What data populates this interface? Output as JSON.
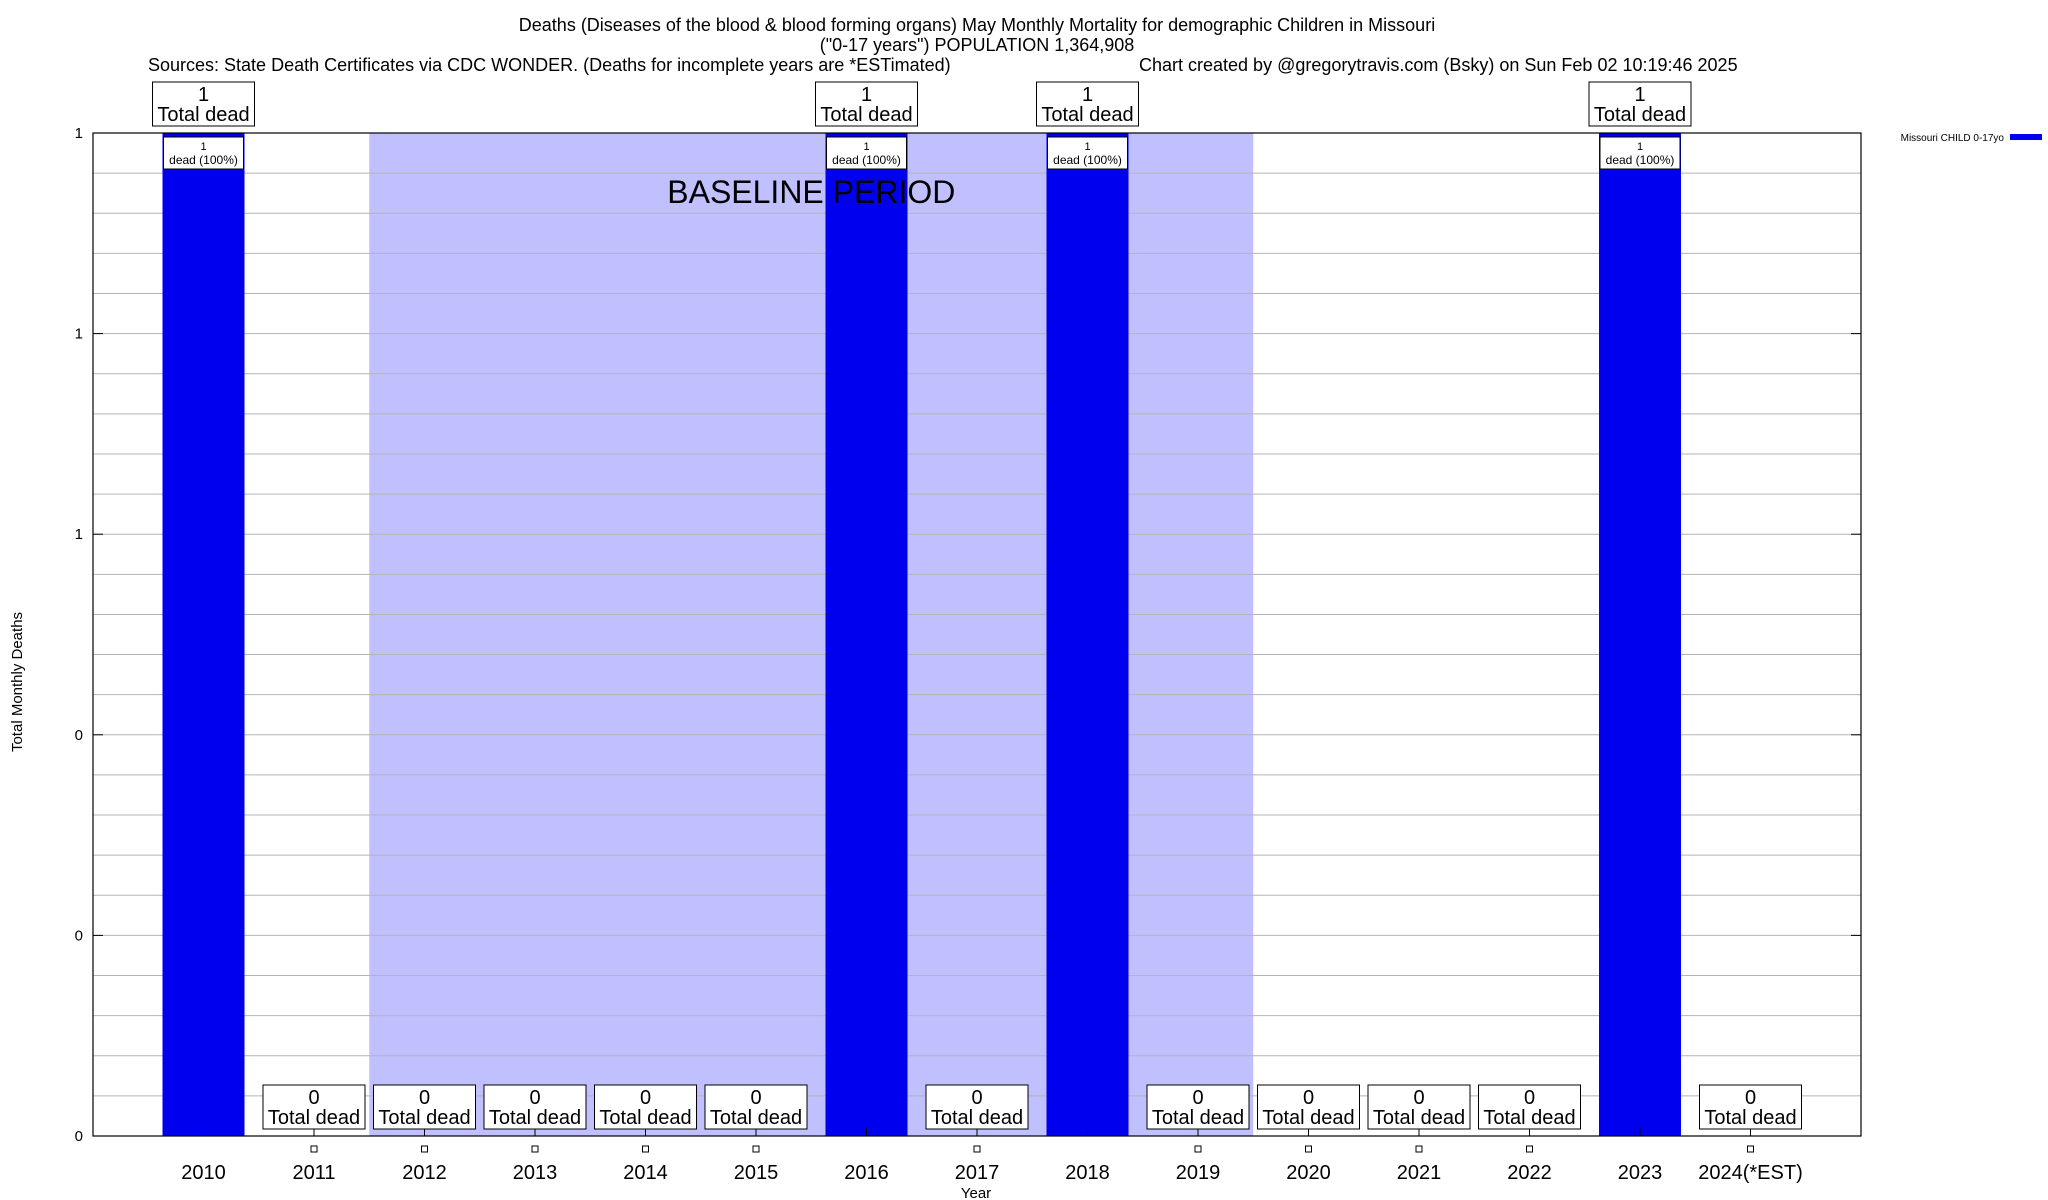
{
  "chart_data": {
    "type": "bar",
    "title_lines": [
      "Deaths (Diseases of the blood & blood forming organs) May Monthly Mortality for demographic Children in Missouri",
      "(\"0-17 years\") POPULATION 1,364,908"
    ],
    "sources_text": "Sources: State Death Certificates via CDC WONDER. (Deaths for incomplete years are *ESTimated)",
    "credit_text": "Chart created by @gregorytravis.com (Bsky) on Sun Feb 02 10:19:46 2025",
    "xlabel": "Year",
    "ylabel": "Total Monthly Deaths",
    "categories": [
      "2010",
      "2011",
      "2012",
      "2013",
      "2014",
      "2015",
      "2016",
      "2017",
      "2018",
      "2019",
      "2020",
      "2021",
      "2022",
      "2023",
      "2024(*EST)"
    ],
    "series": [
      {
        "name": "Missouri CHILD 0-17yo",
        "color": "#0000ee",
        "values": [
          1,
          0,
          0,
          0,
          0,
          0,
          1,
          0,
          1,
          0,
          0,
          0,
          0,
          1,
          0
        ]
      }
    ],
    "ylim": [
      0,
      1
    ],
    "y_tick_values": [
      0,
      0.2,
      0.4,
      0.6,
      0.8,
      1.0
    ],
    "y_tick_labels": [
      "0",
      "0",
      "0",
      "1",
      "1",
      "1"
    ],
    "total_label_suffix": "Total dead",
    "inner_label_suffix": "dead (100%)",
    "baseline": {
      "label": "BASELINE PERIOD",
      "from": "2012",
      "to": "2019",
      "color": "#c0c0ff"
    },
    "legend_position": "top-right",
    "grid": true
  }
}
